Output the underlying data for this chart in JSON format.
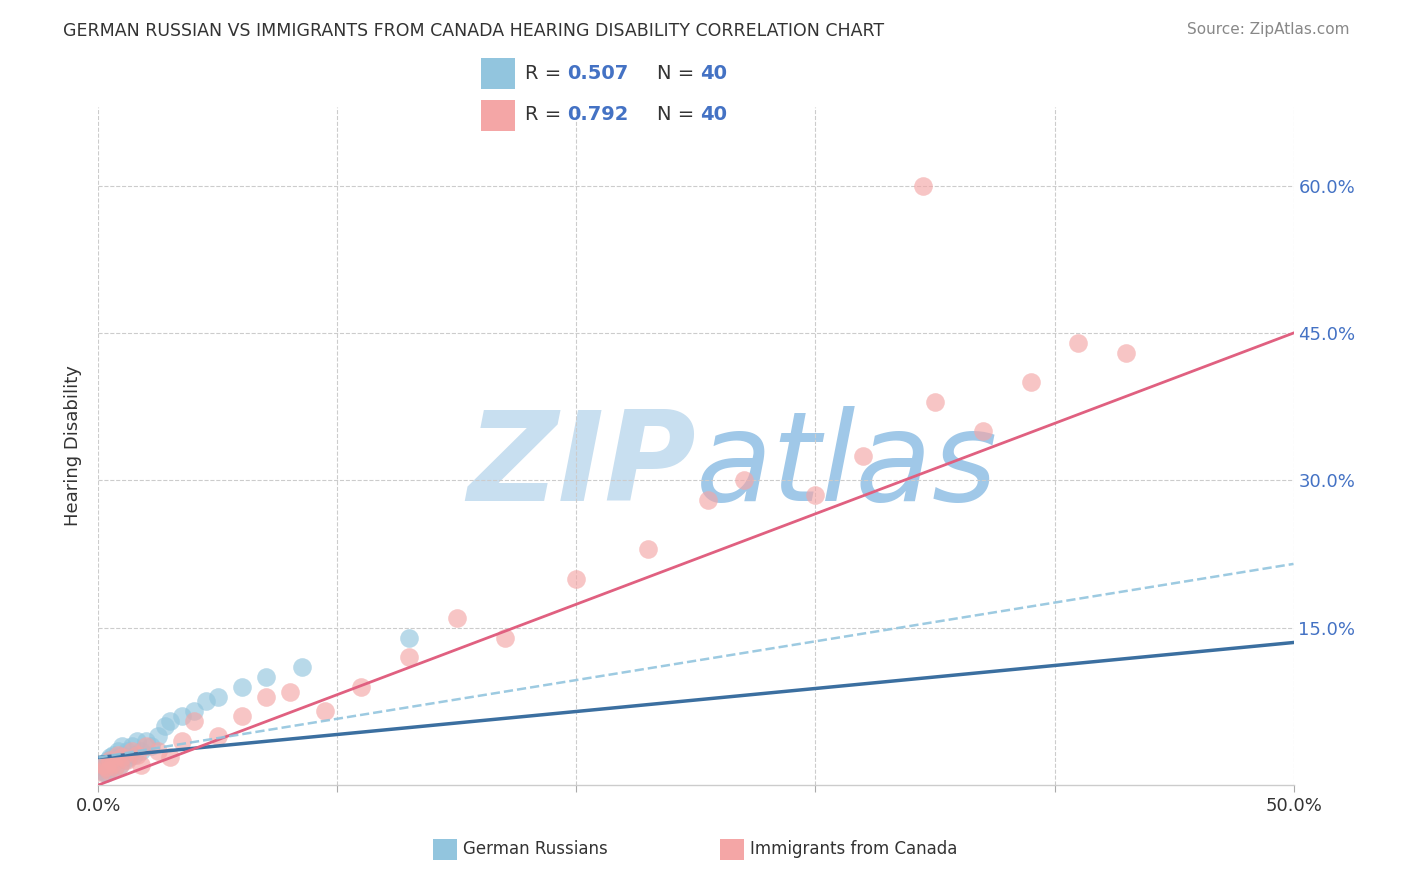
{
  "title": "GERMAN RUSSIAN VS IMMIGRANTS FROM CANADA HEARING DISABILITY CORRELATION CHART",
  "source": "Source: ZipAtlas.com",
  "ylabel": "Hearing Disability",
  "xlim": [
    0.0,
    0.5
  ],
  "ylim": [
    -0.01,
    0.68
  ],
  "xtick_positions": [
    0.0,
    0.1,
    0.2,
    0.3,
    0.4,
    0.5
  ],
  "xticklabels": [
    "0.0%",
    "",
    "",
    "",
    "",
    "50.0%"
  ],
  "ytick_positions": [
    0.15,
    0.3,
    0.45,
    0.6
  ],
  "ytick_labels": [
    "15.0%",
    "30.0%",
    "45.0%",
    "60.0%"
  ],
  "blue_scatter_color": "#92c5de",
  "pink_scatter_color": "#f4a6a6",
  "blue_line_color": "#3b6fa0",
  "pink_line_color": "#e06080",
  "dash_line_color": "#92c5de",
  "legend_label_blue": "German Russians",
  "legend_label_pink": "Immigrants from Canada",
  "watermark": "ZIPatlas",
  "watermark_zip_color": "#c8dff0",
  "watermark_atlas_color": "#a0c8e8",
  "background_color": "#ffffff",
  "grid_color": "#cccccc",
  "ytick_right_color": "#4472c4",
  "blue_x": [
    0.001,
    0.002,
    0.002,
    0.003,
    0.003,
    0.003,
    0.004,
    0.004,
    0.005,
    0.005,
    0.005,
    0.006,
    0.006,
    0.007,
    0.007,
    0.008,
    0.008,
    0.009,
    0.01,
    0.01,
    0.011,
    0.012,
    0.013,
    0.014,
    0.015,
    0.016,
    0.018,
    0.02,
    0.022,
    0.025,
    0.028,
    0.03,
    0.035,
    0.04,
    0.045,
    0.05,
    0.06,
    0.07,
    0.085,
    0.13
  ],
  "blue_y": [
    0.005,
    0.008,
    0.003,
    0.007,
    0.012,
    0.002,
    0.008,
    0.015,
    0.01,
    0.006,
    0.018,
    0.012,
    0.02,
    0.008,
    0.015,
    0.018,
    0.025,
    0.01,
    0.02,
    0.03,
    0.015,
    0.025,
    0.018,
    0.03,
    0.02,
    0.035,
    0.025,
    0.035,
    0.03,
    0.04,
    0.05,
    0.055,
    0.06,
    0.065,
    0.075,
    0.08,
    0.09,
    0.1,
    0.11,
    0.14
  ],
  "pink_x": [
    0.001,
    0.002,
    0.003,
    0.004,
    0.005,
    0.006,
    0.007,
    0.008,
    0.009,
    0.01,
    0.012,
    0.014,
    0.016,
    0.018,
    0.02,
    0.025,
    0.03,
    0.035,
    0.04,
    0.05,
    0.06,
    0.07,
    0.08,
    0.095,
    0.11,
    0.13,
    0.15,
    0.17,
    0.2,
    0.23,
    0.255,
    0.27,
    0.3,
    0.32,
    0.35,
    0.37,
    0.39,
    0.41,
    0.43,
    0.345
  ],
  "pink_y": [
    0.003,
    0.01,
    0.008,
    0.005,
    0.015,
    0.012,
    0.008,
    0.02,
    0.01,
    0.018,
    0.015,
    0.025,
    0.02,
    0.01,
    0.03,
    0.025,
    0.018,
    0.035,
    0.055,
    0.04,
    0.06,
    0.08,
    0.085,
    0.065,
    0.09,
    0.12,
    0.16,
    0.14,
    0.2,
    0.23,
    0.28,
    0.3,
    0.285,
    0.325,
    0.38,
    0.35,
    0.4,
    0.44,
    0.43,
    0.6
  ],
  "blue_trend_x0": 0.0,
  "blue_trend_y0": 0.018,
  "blue_trend_x1": 0.5,
  "blue_trend_y1": 0.135,
  "pink_trend_x0": 0.0,
  "pink_trend_y0": -0.01,
  "pink_trend_x1": 0.5,
  "pink_trend_y1": 0.45,
  "dash_trend_x0": 0.0,
  "dash_trend_y0": 0.018,
  "dash_trend_x1": 0.5,
  "dash_trend_y1": 0.215
}
